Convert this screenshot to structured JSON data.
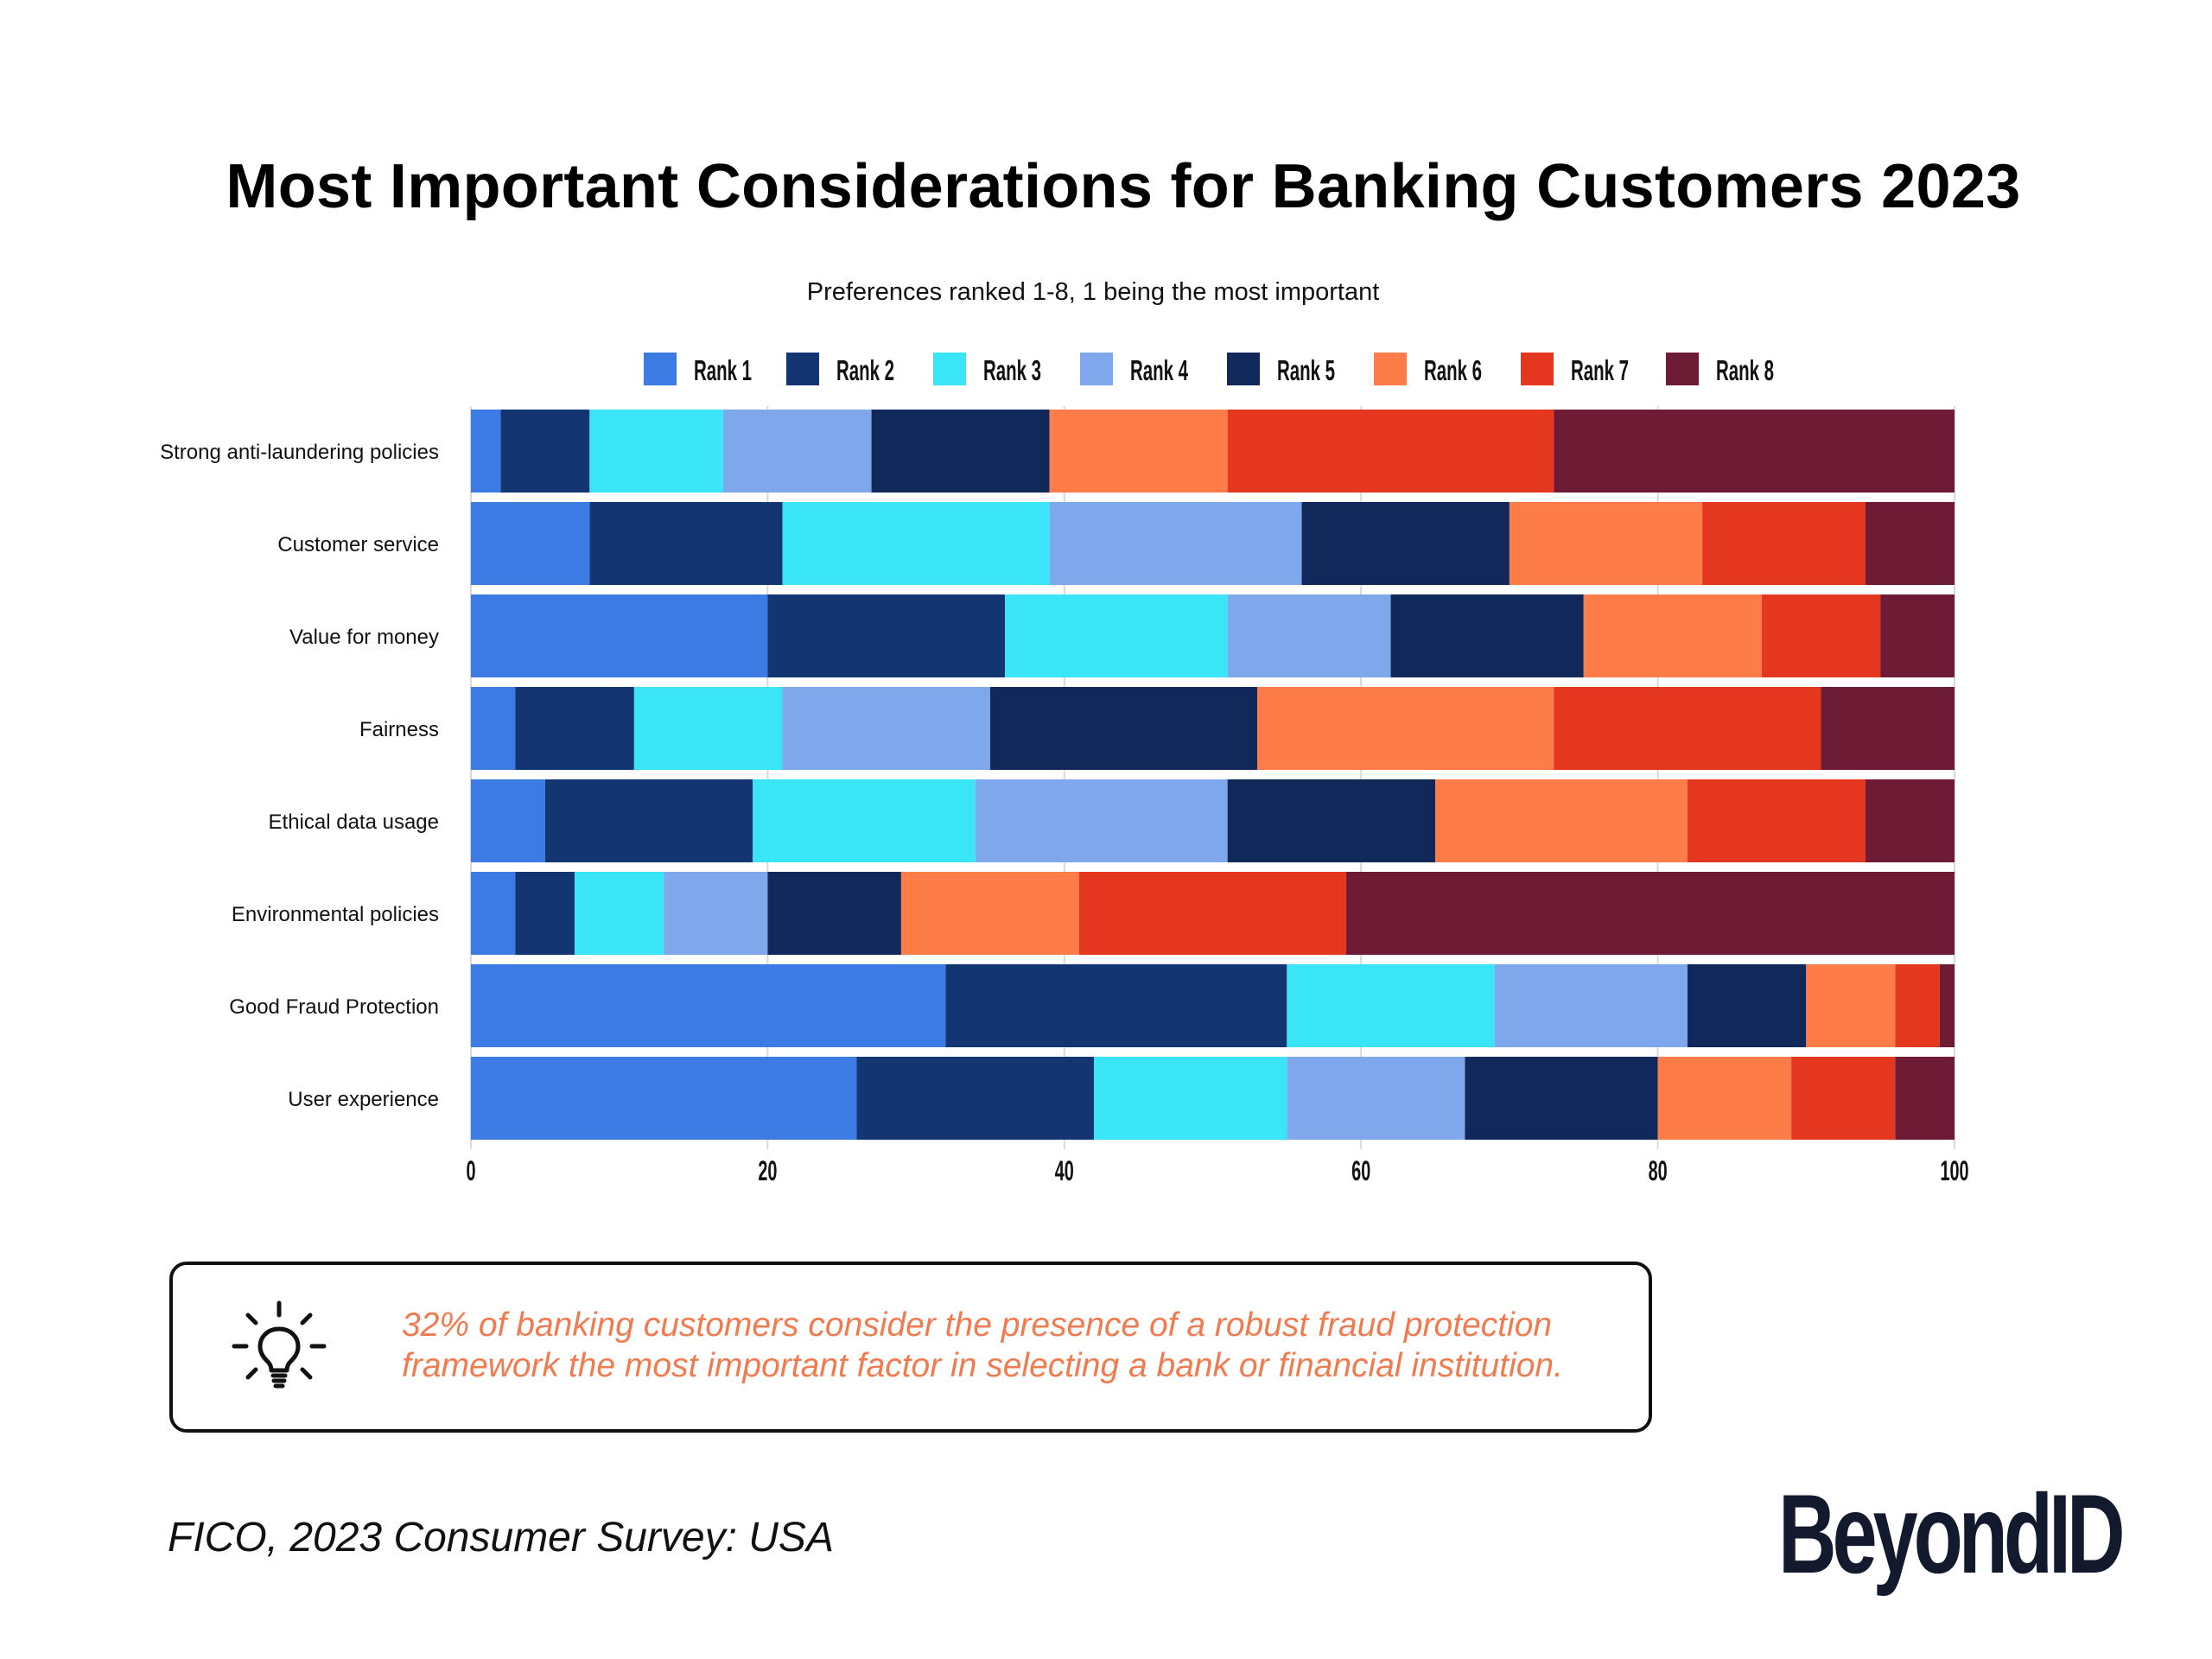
{
  "page": {
    "title": "Most Important Considerations for Banking Customers 2023",
    "subtitle": "Preferences ranked 1-8, 1 being the most important",
    "callout_text": "32% of banking customers consider the presence of a robust fraud protection framework the most important factor in selecting a bank or financial institution.",
    "callout_icon": "lightbulb-icon",
    "source": "FICO, 2023 Consumer Survey: USA",
    "logo": "BeyondID"
  },
  "chart_data": {
    "type": "bar",
    "orientation": "horizontal",
    "stacked": true,
    "categories": [
      "Strong anti-laundering policies",
      "Customer service",
      "Value for money",
      "Fairness",
      "Ethical data usage",
      "Environmental policies",
      "Good Fraud Protection",
      "User experience"
    ],
    "series": [
      {
        "name": "Rank 1",
        "color": "#3b7be3",
        "values": [
          2,
          8,
          20,
          3,
          5,
          3,
          32,
          26
        ]
      },
      {
        "name": "Rank 2",
        "color": "#133673",
        "values": [
          6,
          13,
          16,
          8,
          14,
          4,
          23,
          16
        ]
      },
      {
        "name": "Rank 3",
        "color": "#3ae5f8",
        "values": [
          9,
          18,
          15,
          10,
          15,
          6,
          14,
          13
        ]
      },
      {
        "name": "Rank 4",
        "color": "#7fa7ec",
        "values": [
          10,
          17,
          11,
          14,
          17,
          7,
          13,
          12
        ]
      },
      {
        "name": "Rank 5",
        "color": "#10295a",
        "values": [
          12,
          14,
          13,
          18,
          14,
          9,
          8,
          13
        ]
      },
      {
        "name": "Rank 6",
        "color": "#fe7c48",
        "values": [
          12,
          13,
          12,
          20,
          17,
          12,
          6,
          9
        ]
      },
      {
        "name": "Rank 7",
        "color": "#e5371f",
        "values": [
          22,
          11,
          8,
          18,
          12,
          18,
          3,
          7
        ]
      },
      {
        "name": "Rank 8",
        "color": "#6e1b35",
        "values": [
          27,
          6,
          5,
          9,
          6,
          41,
          1,
          4
        ]
      }
    ],
    "xlim": [
      0,
      100
    ],
    "xticks": [
      0,
      20,
      40,
      60,
      80,
      100
    ],
    "legend_position": "top",
    "grid": true
  }
}
